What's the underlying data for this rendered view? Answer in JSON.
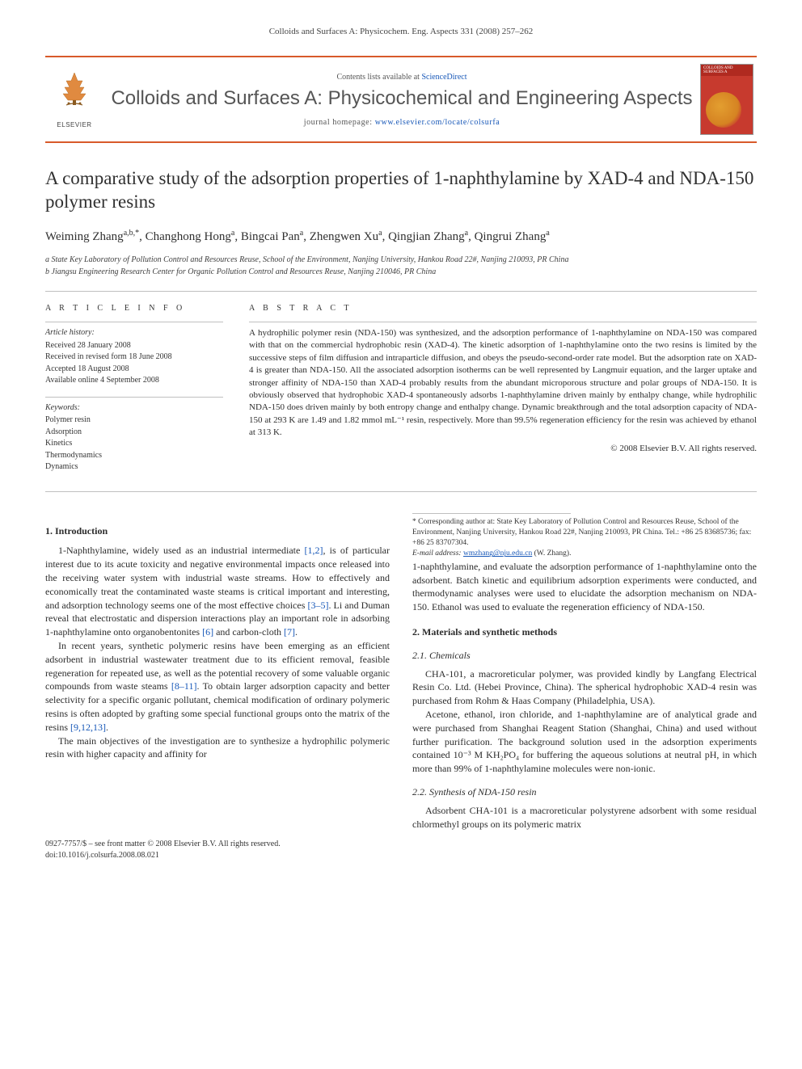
{
  "running_head": "Colloids and Surfaces A: Physicochem. Eng. Aspects 331 (2008) 257–262",
  "masthead": {
    "contents_prefix": "Contents lists available at ",
    "contents_link": "ScienceDirect",
    "journal_name": "Colloids and Surfaces A: Physicochemical and Engineering Aspects",
    "homepage_prefix": "journal homepage: ",
    "homepage_url": "www.elsevier.com/locate/colsurfa",
    "publisher": "ELSEVIER",
    "cover_label": "COLLOIDS AND SURFACES A"
  },
  "article": {
    "title": "A comparative study of the adsorption properties of 1-naphthylamine by XAD-4 and NDA-150 polymer resins",
    "authors_html": "Weiming Zhang<sup>a,b,*</sup>, Changhong Hong<sup>a</sup>, Bingcai Pan<sup>a</sup>, Zhengwen Xu<sup>a</sup>, Qingjian Zhang<sup>a</sup>, Qingrui Zhang<sup>a</sup>",
    "affiliations": [
      "a State Key Laboratory of Pollution Control and Resources Reuse, School of the Environment, Nanjing University, Hankou Road 22#, Nanjing 210093, PR China",
      "b Jiangsu Engineering Research Center for Organic Pollution Control and Resources Reuse, Nanjing 210046, PR China"
    ]
  },
  "info": {
    "head": "A R T I C L E  I N F O",
    "history_label": "Article history:",
    "history": [
      "Received 28 January 2008",
      "Received in revised form 18 June 2008",
      "Accepted 18 August 2008",
      "Available online 4 September 2008"
    ],
    "keywords_label": "Keywords:",
    "keywords": [
      "Polymer resin",
      "Adsorption",
      "Kinetics",
      "Thermodynamics",
      "Dynamics"
    ]
  },
  "abstract": {
    "head": "A B S T R A C T",
    "text": "A hydrophilic polymer resin (NDA-150) was synthesized, and the adsorption performance of 1-naphthylamine on NDA-150 was compared with that on the commercial hydrophobic resin (XAD-4). The kinetic adsorption of 1-naphthylamine onto the two resins is limited by the successive steps of film diffusion and intraparticle diffusion, and obeys the pseudo-second-order rate model. But the adsorption rate on XAD-4 is greater than NDA-150. All the associated adsorption isotherms can be well represented by Langmuir equation, and the larger uptake and stronger affinity of NDA-150 than XAD-4 probably results from the abundant microporous structure and polar groups of NDA-150. It is obviously observed that hydrophobic XAD-4 spontaneously adsorbs 1-naphthylamine driven mainly by enthalpy change, while hydrophilic NDA-150 does driven mainly by both entropy change and enthalpy change. Dynamic breakthrough and the total adsorption capacity of NDA-150 at 293 K are 1.49 and 1.82 mmol mL⁻¹ resin, respectively. More than 99.5% regeneration efficiency for the resin was achieved by ethanol at 313 K.",
    "copyright": "© 2008 Elsevier B.V. All rights reserved."
  },
  "body": {
    "sec1_head": "1. Introduction",
    "sec1_p1": "1-Naphthylamine, widely used as an industrial intermediate [1,2], is of particular interest due to its acute toxicity and negative environmental impacts once released into the receiving water system with industrial waste streams. How to effectively and economically treat the contaminated waste steams is critical important and interesting, and adsorption technology seems one of the most effective choices [3–5]. Li and Duman reveal that electrostatic and dispersion interactions play an important role in adsorbing 1-naphthylamine onto organobentonites [6] and carbon-cloth [7].",
    "sec1_p2": "In recent years, synthetic polymeric resins have been emerging as an efficient adsorbent in industrial wastewater treatment due to its efficient removal, feasible regeneration for repeated use, as well as the potential recovery of some valuable organic compounds from waste steams [8–11]. To obtain larger adsorption capacity and better selectivity for a specific organic pollutant, chemical modification of ordinary polymeric resins is often adopted by grafting some special functional groups onto the matrix of the resins [9,12,13].",
    "sec1_p3": "The main objectives of the investigation are to synthesize a hydrophilic polymeric resin with higher capacity and affinity for",
    "sec1_p3b": "1-naphthylamine, and evaluate the adsorption performance of 1-naphthylamine onto the adsorbent. Batch kinetic and equilibrium adsorption experiments were conducted, and thermodynamic analyses were used to elucidate the adsorption mechanism on NDA-150. Ethanol was used to evaluate the regeneration efficiency of NDA-150.",
    "sec2_head": "2. Materials and synthetic methods",
    "sec21_head": "2.1. Chemicals",
    "sec21_p1": "CHA-101, a macroreticular polymer, was provided kindly by Langfang Electrical Resin Co. Ltd. (Hebei Province, China). The spherical hydrophobic XAD-4 resin was purchased from Rohm & Haas Company (Philadelphia, USA).",
    "sec21_p2": "Acetone, ethanol, iron chloride, and 1-naphthylamine are of analytical grade and were purchased from Shanghai Reagent Station (Shanghai, China) and used without further purification. The background solution used in the adsorption experiments contained 10⁻³ M KH₂PO₄ for buffering the aqueous solutions at neutral pH, in which more than 99% of 1-naphthylamine molecules were non-ionic.",
    "sec22_head": "2.2. Synthesis of NDA-150 resin",
    "sec22_p1": "Adsorbent CHA-101 is a macroreticular polystyrene adsorbent with some residual chlormethyl groups on its polymeric matrix"
  },
  "footnote": {
    "corr": "* Corresponding author at: State Key Laboratory of Pollution Control and Resources Reuse, School of the Environment, Nanjing University, Hankou Road 22#, Nanjing 210093, PR China. Tel.: +86 25 83685736; fax: +86 25 83707304.",
    "email_label": "E-mail address:",
    "email": "wmzhang@nju.edu.cn",
    "email_suffix": "(W. Zhang)."
  },
  "footer": {
    "issn": "0927-7757/$ – see front matter © 2008 Elsevier B.V. All rights reserved.",
    "doi": "doi:10.1016/j.colsurfa.2008.08.021"
  },
  "colors": {
    "accent": "#d85a2a",
    "link": "#1858b8",
    "text": "#2c2c2c",
    "rule": "#bfbfbf",
    "cover_bg": "#c73a2e"
  }
}
